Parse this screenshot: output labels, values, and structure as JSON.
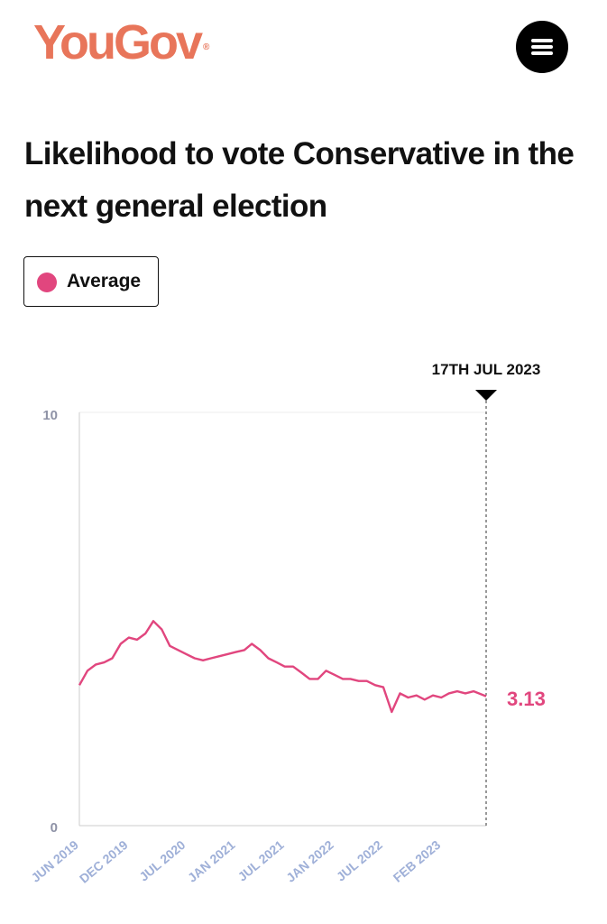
{
  "header": {
    "logo_text": "YouGov",
    "logo_mark": "®",
    "menu_icon": "hamburger-menu-icon"
  },
  "colors": {
    "brand": "#e8755a",
    "series": "#e1467e",
    "axis_label": "#8e92a6",
    "tick_label": "#9fb0d8"
  },
  "chart_data": {
    "type": "line",
    "title": "Likelihood to vote Conservative in the next general election",
    "legend": [
      "Average"
    ],
    "ylim": [
      0,
      10
    ],
    "y_tick_labels": [
      "10",
      "0"
    ],
    "x_tick_labels": [
      "JUN 2019",
      "DEC 2019",
      "JUL 2020",
      "JAN 2021",
      "JUL 2021",
      "JAN 2022",
      "JUL 2022",
      "FEB 2023"
    ],
    "marker_label": "17TH JUL 2023",
    "last_value_label": "3.13",
    "series": [
      {
        "name": "Average",
        "x": [
          "2019-06",
          "2019-07",
          "2019-08",
          "2019-09",
          "2019-10",
          "2019-11",
          "2019-12",
          "2020-01",
          "2020-02",
          "2020-03",
          "2020-04",
          "2020-05",
          "2020-06",
          "2020-07",
          "2020-08",
          "2020-09",
          "2020-10",
          "2020-11",
          "2020-12",
          "2021-01",
          "2021-02",
          "2021-03",
          "2021-04",
          "2021-05",
          "2021-06",
          "2021-07",
          "2021-08",
          "2021-09",
          "2021-10",
          "2021-11",
          "2021-12",
          "2022-01",
          "2022-02",
          "2022-03",
          "2022-04",
          "2022-05",
          "2022-06",
          "2022-07",
          "2022-08",
          "2022-09",
          "2022-10",
          "2022-11",
          "2022-12",
          "2023-01",
          "2023-02",
          "2023-03",
          "2023-04",
          "2023-05",
          "2023-06",
          "2023-07-17"
        ],
        "values": [
          3.4,
          3.75,
          3.9,
          3.95,
          4.05,
          4.4,
          4.55,
          4.5,
          4.65,
          4.95,
          4.75,
          4.35,
          4.25,
          4.15,
          4.05,
          4.0,
          4.05,
          4.1,
          4.15,
          4.2,
          4.25,
          4.4,
          4.25,
          4.05,
          3.95,
          3.85,
          3.85,
          3.7,
          3.55,
          3.55,
          3.75,
          3.65,
          3.55,
          3.55,
          3.5,
          3.5,
          3.4,
          3.35,
          2.75,
          3.2,
          3.1,
          3.15,
          3.05,
          3.15,
          3.1,
          3.2,
          3.25,
          3.2,
          3.25,
          3.13
        ]
      }
    ]
  }
}
